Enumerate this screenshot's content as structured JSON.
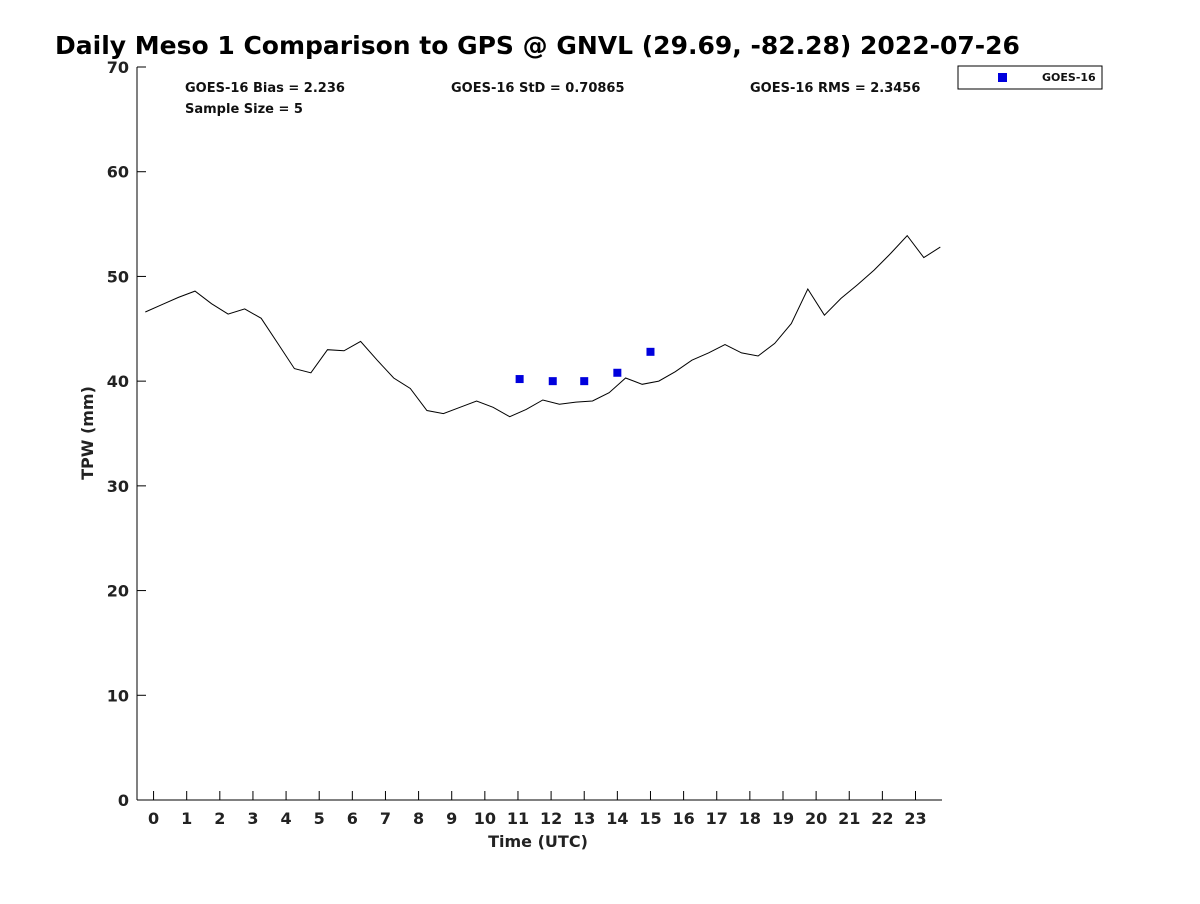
{
  "chart_data": {
    "type": "line",
    "title": "Daily Meso 1 Comparison to GPS @ GNVL (29.69, -82.28) 2022-07-26",
    "xlabel": "Time (UTC)",
    "ylabel": "TPW (mm)",
    "xlim": [
      -0.5,
      23.8
    ],
    "ylim": [
      0,
      70
    ],
    "x_ticks": [
      0,
      1,
      2,
      3,
      4,
      5,
      6,
      7,
      8,
      9,
      10,
      11,
      12,
      13,
      14,
      15,
      16,
      17,
      18,
      19,
      20,
      21,
      22,
      23
    ],
    "y_ticks": [
      0,
      10,
      20,
      30,
      40,
      50,
      60,
      70
    ],
    "grid": false,
    "legend_position": "top-right-outside",
    "stats": {
      "bias": "GOES-16 Bias = 2.236",
      "std": "GOES-16 StD = 0.70865",
      "rms": "GOES-16 RMS = 2.3456",
      "sample_size": "Sample Size = 5"
    },
    "series": [
      {
        "kind": "line",
        "color": "#000000",
        "x": [
          -0.25,
          0.25,
          0.75,
          1.25,
          1.75,
          2.25,
          2.75,
          3.25,
          3.75,
          4.25,
          4.75,
          5.25,
          5.75,
          6.25,
          6.75,
          7.25,
          7.75,
          8.25,
          8.75,
          9.25,
          9.75,
          10.25,
          10.75,
          11.25,
          11.75,
          12.25,
          12.75,
          13.25,
          13.75,
          14.25,
          14.75,
          15.25,
          15.75,
          16.25,
          16.75,
          17.25,
          17.75,
          18.25,
          18.75,
          19.25,
          19.75,
          20.25,
          20.75,
          21.25,
          21.75,
          22.25,
          22.75,
          23.25,
          23.75
        ],
        "values": [
          46.6,
          47.3,
          48.0,
          48.6,
          47.4,
          46.4,
          46.9,
          46.0,
          43.6,
          41.2,
          40.8,
          43.0,
          42.9,
          43.8,
          42.0,
          40.3,
          39.3,
          37.2,
          36.9,
          37.5,
          38.1,
          37.5,
          36.6,
          37.3,
          38.2,
          37.8,
          38.0,
          38.1,
          38.9,
          40.3,
          39.7,
          40.0,
          40.9,
          42.0,
          42.7,
          43.5,
          42.7,
          42.4,
          43.6,
          45.5,
          48.8,
          46.3,
          47.9,
          49.2,
          50.6,
          52.2,
          53.9,
          51.8,
          52.8
        ]
      },
      {
        "name": "GOES-16",
        "kind": "scatter",
        "marker": "square",
        "color": "#0000dd",
        "x": [
          11.05,
          12.05,
          13.0,
          14.0,
          15.0
        ],
        "values": [
          40.2,
          40.0,
          40.0,
          40.8,
          42.8
        ]
      }
    ]
  }
}
